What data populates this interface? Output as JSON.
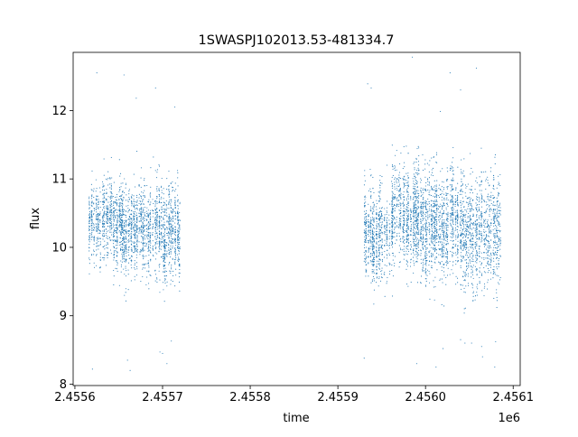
{
  "colors": {
    "series": "#1f77b4",
    "axes": "#000000",
    "background": "#ffffff"
  },
  "chart_data": {
    "type": "scatter",
    "title": "1SWASPJ102013.53-481334.7",
    "xlabel": "time",
    "ylabel": "flux",
    "x_offset_label": "1e6",
    "xlim": [
      2455598,
      2456108
    ],
    "ylim": [
      7.98,
      12.85
    ],
    "x_ticks": [
      2455600,
      2455700,
      2455800,
      2455900,
      2456000,
      2456100
    ],
    "x_tick_labels": [
      "2.4556",
      "2.4557",
      "2.4558",
      "2.4559",
      "2.4560",
      "2.4561"
    ],
    "y_ticks": [
      8,
      9,
      10,
      11,
      12
    ],
    "y_tick_labels": [
      "8",
      "9",
      "10",
      "11",
      "12"
    ],
    "grid": false,
    "legend": "none",
    "marker": "small-dot",
    "segments": [
      {
        "x_start": 2455616,
        "x_end": 2455652,
        "mean": 10.38,
        "std": 0.27
      },
      {
        "x_start": 2455652,
        "x_end": 2455677,
        "mean": 10.3,
        "std": 0.3
      },
      {
        "x_start": 2455677,
        "x_end": 2455702,
        "mean": 10.28,
        "std": 0.33
      },
      {
        "x_start": 2455702,
        "x_end": 2455719,
        "mean": 10.18,
        "std": 0.32
      },
      {
        "x_start": 2455930,
        "x_end": 2455962,
        "mean": 10.2,
        "std": 0.32
      },
      {
        "x_start": 2455962,
        "x_end": 2456000,
        "mean": 10.45,
        "std": 0.36
      },
      {
        "x_start": 2456000,
        "x_end": 2456040,
        "mean": 10.35,
        "std": 0.38
      },
      {
        "x_start": 2456040,
        "x_end": 2456085,
        "mean": 10.22,
        "std": 0.4
      }
    ],
    "outliers": [
      [
        2455625,
        12.55
      ],
      [
        2455620,
        8.22
      ],
      [
        2455656,
        12.52
      ],
      [
        2455663,
        8.2
      ],
      [
        2455660,
        8.35
      ],
      [
        2455670,
        12.18
      ],
      [
        2455692,
        12.33
      ],
      [
        2455700,
        8.45
      ],
      [
        2455705,
        8.3
      ],
      [
        2455714,
        12.05
      ],
      [
        2455710,
        8.63
      ],
      [
        2455697,
        8.47
      ],
      [
        2455934,
        12.39
      ],
      [
        2455938,
        12.33
      ],
      [
        2455930,
        8.38
      ],
      [
        2455985,
        12.78
      ],
      [
        2455990,
        8.3
      ],
      [
        2456020,
        8.52
      ],
      [
        2456028,
        12.55
      ],
      [
        2456040,
        12.3
      ],
      [
        2456045,
        8.6
      ],
      [
        2456058,
        12.62
      ],
      [
        2456064,
        8.55
      ],
      [
        2456080,
        8.62
      ],
      [
        2456079,
        8.25
      ],
      [
        2456065,
        8.4
      ],
      [
        2456040,
        8.65
      ],
      [
        2456012,
        8.25
      ]
    ]
  }
}
